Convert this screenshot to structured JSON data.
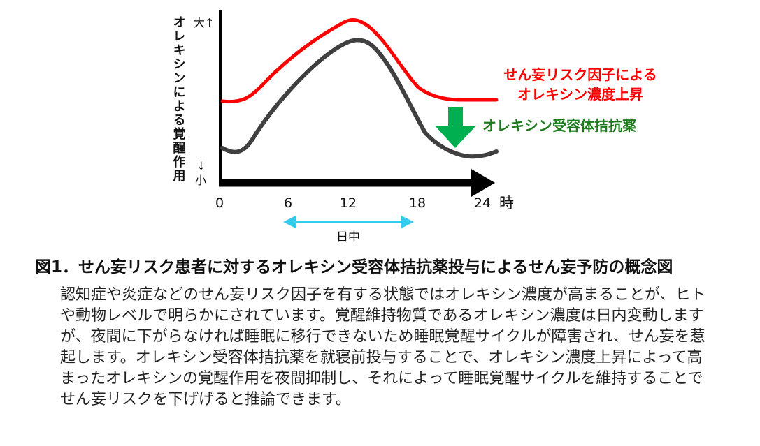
{
  "diagram": {
    "y_axis_label": "オレキシンによる覚醒作用",
    "y_top": "大↑",
    "y_bottom_arrow": "↓",
    "y_bottom": "小",
    "x_ticks": [
      "0",
      "6",
      "12",
      "18",
      "24"
    ],
    "x_unit": "時",
    "daytime_label": "日中",
    "red_label_line1": "せん妄リスク因子による",
    "red_label_line2": "オレキシン濃度上昇",
    "green_label": "オレキシン受容体拮抗薬",
    "colors": {
      "risk_curve": "#ff0000",
      "normal_curve": "#404040",
      "drug_arrow": "#00b050",
      "drug_text": "#1e7b1e",
      "daytime_arrow": "#33ccee",
      "axis": "#000000"
    }
  },
  "caption": "図1．せん妄リスク患者に対するオレキシン受容体拮抗薬投与によるせん妄予防の概念図",
  "description": "認知症や炎症などのせん妄リスク因子を有する状態ではオレキシン濃度が高まることが、ヒトや動物レベルで明らかにされています。覚醒維持物質であるオレキシン濃度は日内変動しますが、夜間に下がらなければ睡眠に移行できないため睡眠覚醒サイクルが障害され、せん妄を惹起します。オレキシン受容体拮抗薬を就寝前投与することで、オレキシン濃度上昇によって高まったオレキシンの覚醒作用を夜間抑制し、それによって睡眠覚醒サイクルを維持することでせん妄リスクを下げげると推論できます。"
}
